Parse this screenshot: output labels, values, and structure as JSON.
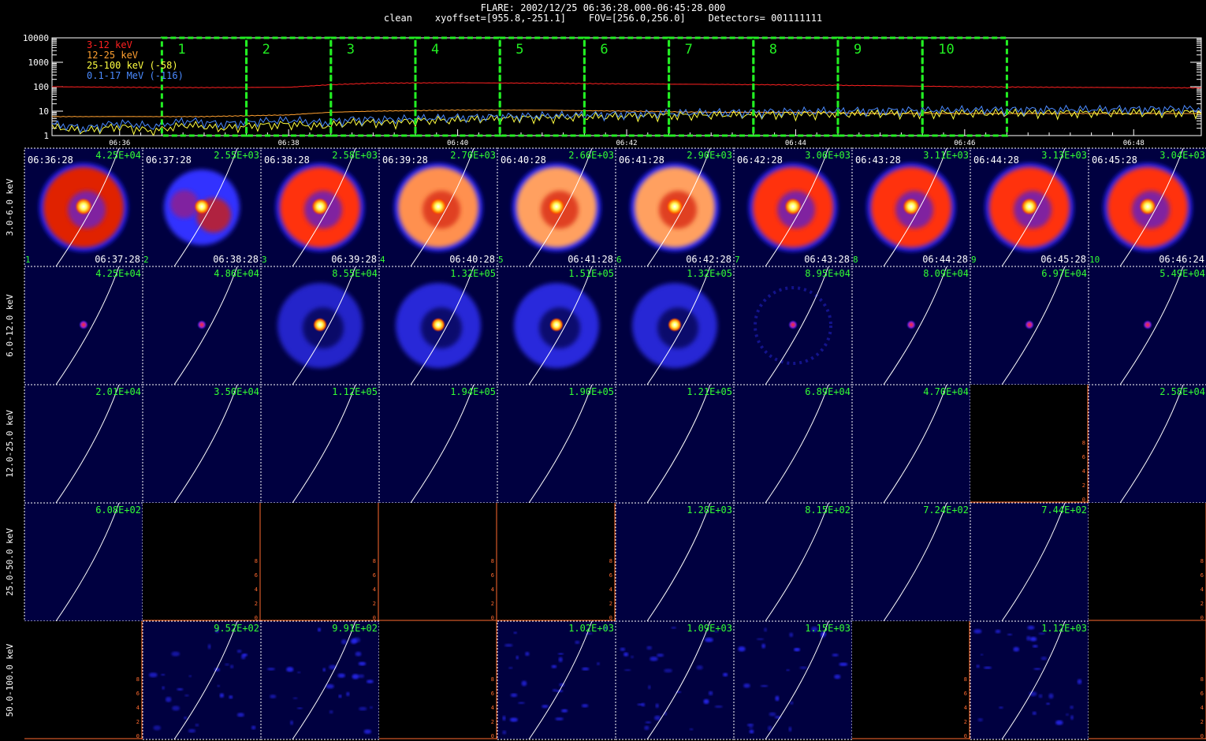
{
  "header": {
    "title": "FLARE: 2002/12/25 06:36:28.000-06:45:28.000",
    "subtitle": "clean    xyoffset=[955.8,-251.1]    FOV=[256.0,256.0]    Detectors= 001111111"
  },
  "colors": {
    "grid_border": "#ffffff",
    "empty_border": "#ff6a30",
    "stamp": "#ffffff",
    "peak": "#33ff33",
    "limb": "#ffffff",
    "interval_box": "#22ee22",
    "panel_bg": "#000040"
  },
  "chart_data": [
    {
      "type": "line",
      "title": "",
      "ylim": [
        1,
        10000
      ],
      "ylog": true,
      "y_ticks": [
        "1",
        "10",
        "100",
        "1000",
        "10000"
      ],
      "x_ticks": [
        "06:36",
        "06:38",
        "06:40",
        "06:42",
        "06:44",
        "06:46",
        "06:48"
      ],
      "xlim_minutes": [
        35.2,
        48.8
      ],
      "legend_placement": "top-left",
      "series": [
        {
          "name": "3-12 keV",
          "color": "#ff2020",
          "x": [
            35.2,
            36,
            37,
            38,
            38.5,
            39,
            40,
            41,
            42,
            43,
            44,
            45,
            46,
            47,
            48,
            48.8
          ],
          "values": [
            100,
            95,
            92,
            95,
            120,
            140,
            145,
            140,
            130,
            125,
            118,
            110,
            100,
            95,
            92,
            90
          ]
        },
        {
          "name": "12-25 keV",
          "color": "#ffa030",
          "x": [
            35.2,
            36,
            37,
            38,
            38.5,
            39,
            40,
            41,
            42,
            43,
            44,
            45,
            46,
            47,
            48,
            48.8
          ],
          "values": [
            6,
            6,
            6,
            7,
            9,
            10,
            11,
            11,
            10,
            9,
            9,
            8,
            8,
            8,
            8,
            8
          ]
        },
        {
          "name": "25-100 keV (-58)",
          "color": "#ffff40",
          "x": [
            35.2,
            35.6,
            36,
            36.4,
            36.8,
            37.2,
            37.6,
            38,
            38.4,
            38.8,
            39.2,
            39.6,
            40,
            40.4,
            40.8,
            41.2,
            41.6,
            42,
            42.4,
            42.8,
            43.2,
            43.6,
            44,
            44.4,
            44.8,
            45.2,
            45.6,
            46,
            46.4,
            46.8,
            47.2,
            47.6,
            48,
            48.4,
            48.8
          ],
          "values": [
            2.2,
            1.6,
            2.4,
            1.5,
            2.8,
            2.0,
            2.6,
            3.0,
            2.4,
            3.6,
            3.4,
            4.2,
            4.5,
            5.0,
            5.4,
            5.6,
            6.0,
            6.4,
            6.8,
            7.0,
            7.2,
            7.4,
            7.6,
            7.8,
            8.0,
            8.1,
            8.2,
            8.4,
            8.4,
            8.6,
            8.6,
            8.7,
            8.8,
            8.8,
            9.0
          ]
        },
        {
          "name": "0.1-17 MeV (-116)",
          "color": "#4a8aff",
          "x": [
            35.2,
            35.6,
            36,
            36.4,
            36.8,
            37.2,
            37.6,
            38,
            38.4,
            38.8,
            39.2,
            39.6,
            40,
            40.4,
            40.8,
            41.2,
            41.6,
            42,
            42.4,
            42.8,
            43.2,
            43.6,
            44,
            44.4,
            44.8,
            45.2,
            45.6,
            46,
            46.4,
            46.8,
            47.2,
            47.6,
            48,
            48.4,
            48.8
          ],
          "values": [
            3.0,
            2.0,
            3.4,
            2.4,
            4.2,
            3.0,
            3.8,
            4.4,
            3.4,
            4.8,
            4.6,
            5.2,
            5.6,
            6.0,
            6.4,
            6.8,
            7.2,
            7.8,
            8.4,
            8.8,
            9.2,
            9.6,
            10.0,
            10.4,
            10.6,
            11.0,
            11.2,
            11.4,
            11.6,
            11.8,
            12.0,
            12.2,
            12.4,
            12.6,
            12.8
          ]
        }
      ],
      "intervals": [
        "1",
        "2",
        "3",
        "4",
        "5",
        "6",
        "7",
        "8",
        "9",
        "10"
      ]
    },
    {
      "type": "heatmap",
      "title": "",
      "rows": [
        "3.0-6.0 keV",
        "6.0-12.0 keV",
        "12.0-25.0 keV",
        "25.0-50.0 keV",
        "50.0-100.0 keV"
      ],
      "start_times": [
        "06:36:28",
        "06:37:28",
        "06:38:28",
        "06:39:28",
        "06:40:28",
        "06:41:28",
        "06:42:28",
        "06:43:28",
        "06:44:28",
        "06:45:28"
      ],
      "end_times": [
        "06:37:28",
        "06:38:28",
        "06:39:28",
        "06:40:28",
        "06:41:28",
        "06:42:28",
        "06:43:28",
        "06:44:28",
        "06:45:28",
        "06:46:24"
      ],
      "interval_numbers": [
        "1",
        "2",
        "3",
        "4",
        "5",
        "6",
        "7",
        "8",
        "9",
        "10"
      ],
      "peaks": [
        [
          "4.25E+04",
          "2.55E+03",
          "2.58E+03",
          "2.70E+03",
          "2.66E+03",
          "2.90E+03",
          "3.06E+03",
          "3.11E+03",
          "3.13E+03",
          "3.04E+03"
        ],
        [
          "4.25E+04",
          "4.86E+04",
          "8.55E+04",
          "1.32E+05",
          "1.51E+05",
          "1.32E+05",
          "8.95E+04",
          "8.09E+04",
          "6.97E+04",
          "5.49E+04"
        ],
        [
          "2.01E+04",
          "3.50E+04",
          "1.12E+05",
          "1.94E+05",
          "1.90E+05",
          "1.21E+05",
          "6.89E+04",
          "4.70E+04",
          "",
          "2.58E+04"
        ],
        [
          "6.08E+02",
          "",
          "",
          "",
          "",
          "1.28E+03",
          "8.15E+02",
          "7.24E+02",
          "7.44E+02",
          ""
        ],
        [
          "",
          "9.52E+02",
          "9.91E+02",
          "",
          "1.02E+03",
          "1.09E+03",
          "1.15E+03",
          "",
          "1.12E+03",
          ""
        ]
      ],
      "panel_kind": [
        [
          "ring",
          "patchy",
          "ring",
          "ring",
          "ring",
          "ring",
          "ring",
          "ring",
          "ring",
          "ring"
        ],
        [
          "dot",
          "dot",
          "ring",
          "ring",
          "ring",
          "ring",
          "faint",
          "dot",
          "dot",
          "dot"
        ],
        [
          "blank",
          "blank",
          "blank",
          "blank",
          "blank",
          "blank",
          "blank",
          "blank",
          "empty",
          "blank"
        ],
        [
          "blank",
          "empty",
          "empty",
          "empty",
          "empty",
          "blank",
          "blank",
          "blank",
          "blank",
          "empty"
        ],
        [
          "empty",
          "noise",
          "noise",
          "empty",
          "noise",
          "noise",
          "noise",
          "empty",
          "noise",
          "empty"
        ]
      ],
      "ring_intensity": [
        0.45,
        0.4,
        0.62,
        0.82,
        0.9,
        0.86,
        0.66,
        0.64,
        0.62,
        0.6
      ],
      "ring2_intensity": [
        0,
        0,
        0.22,
        0.3,
        0.32,
        0.28,
        0.08,
        0,
        0,
        0
      ],
      "empty_ticks": [
        "0",
        "2",
        "4",
        "6",
        "8"
      ]
    }
  ]
}
